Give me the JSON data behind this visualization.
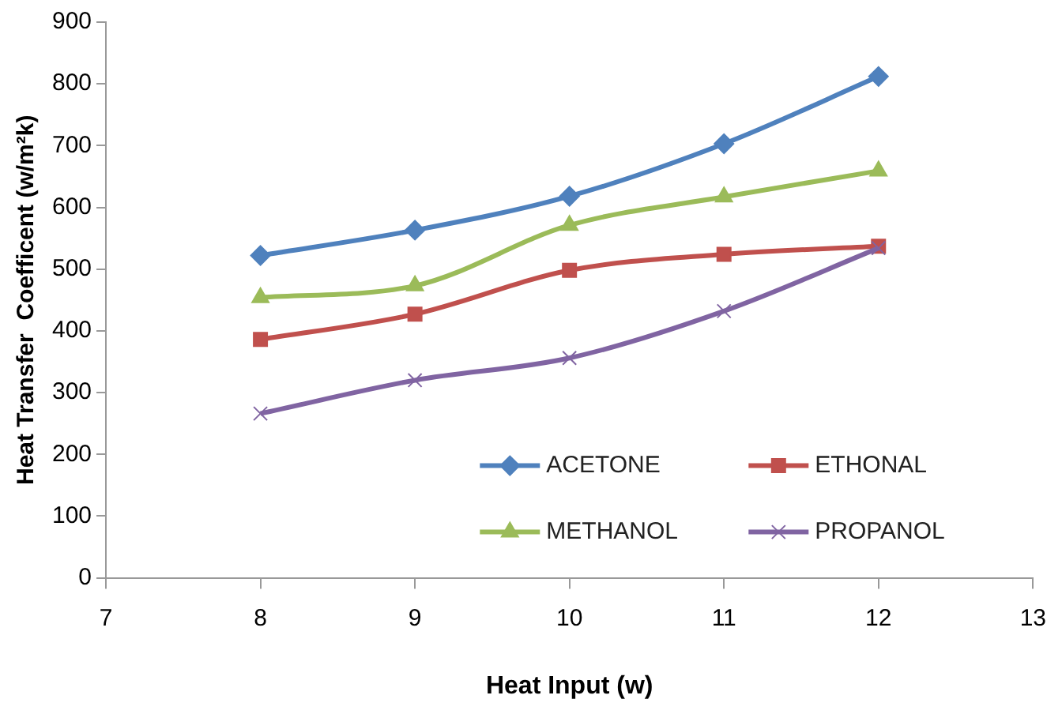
{
  "chart_data": {
    "type": "line",
    "xlabel": "Heat Input (w)",
    "ylabel": "Heat Transfer  Coefficent (w/m²k)",
    "x": [
      8,
      9,
      10,
      11,
      12
    ],
    "xlim": [
      7,
      13
    ],
    "xticks": [
      7,
      8,
      9,
      10,
      11,
      12,
      13
    ],
    "ylim": [
      0,
      900
    ],
    "yticks": [
      0,
      100,
      200,
      300,
      400,
      500,
      600,
      700,
      800,
      900
    ],
    "grid": false,
    "legend": "bottom right",
    "series": [
      {
        "name": "ACETONE",
        "color": "#4f81bd",
        "marker": "diamond",
        "values": [
          522,
          563,
          618,
          703,
          812
        ]
      },
      {
        "name": "ETHONAL",
        "color": "#c0504d",
        "marker": "square",
        "values": [
          386,
          427,
          498,
          524,
          537
        ]
      },
      {
        "name": "METHANOL",
        "color": "#9bbb59",
        "marker": "triangle",
        "values": [
          454,
          473,
          571,
          617,
          659
        ]
      },
      {
        "name": "PROPANOL",
        "color": "#8064a2",
        "marker": "cross",
        "values": [
          266,
          320,
          356,
          432,
          534
        ]
      }
    ]
  }
}
